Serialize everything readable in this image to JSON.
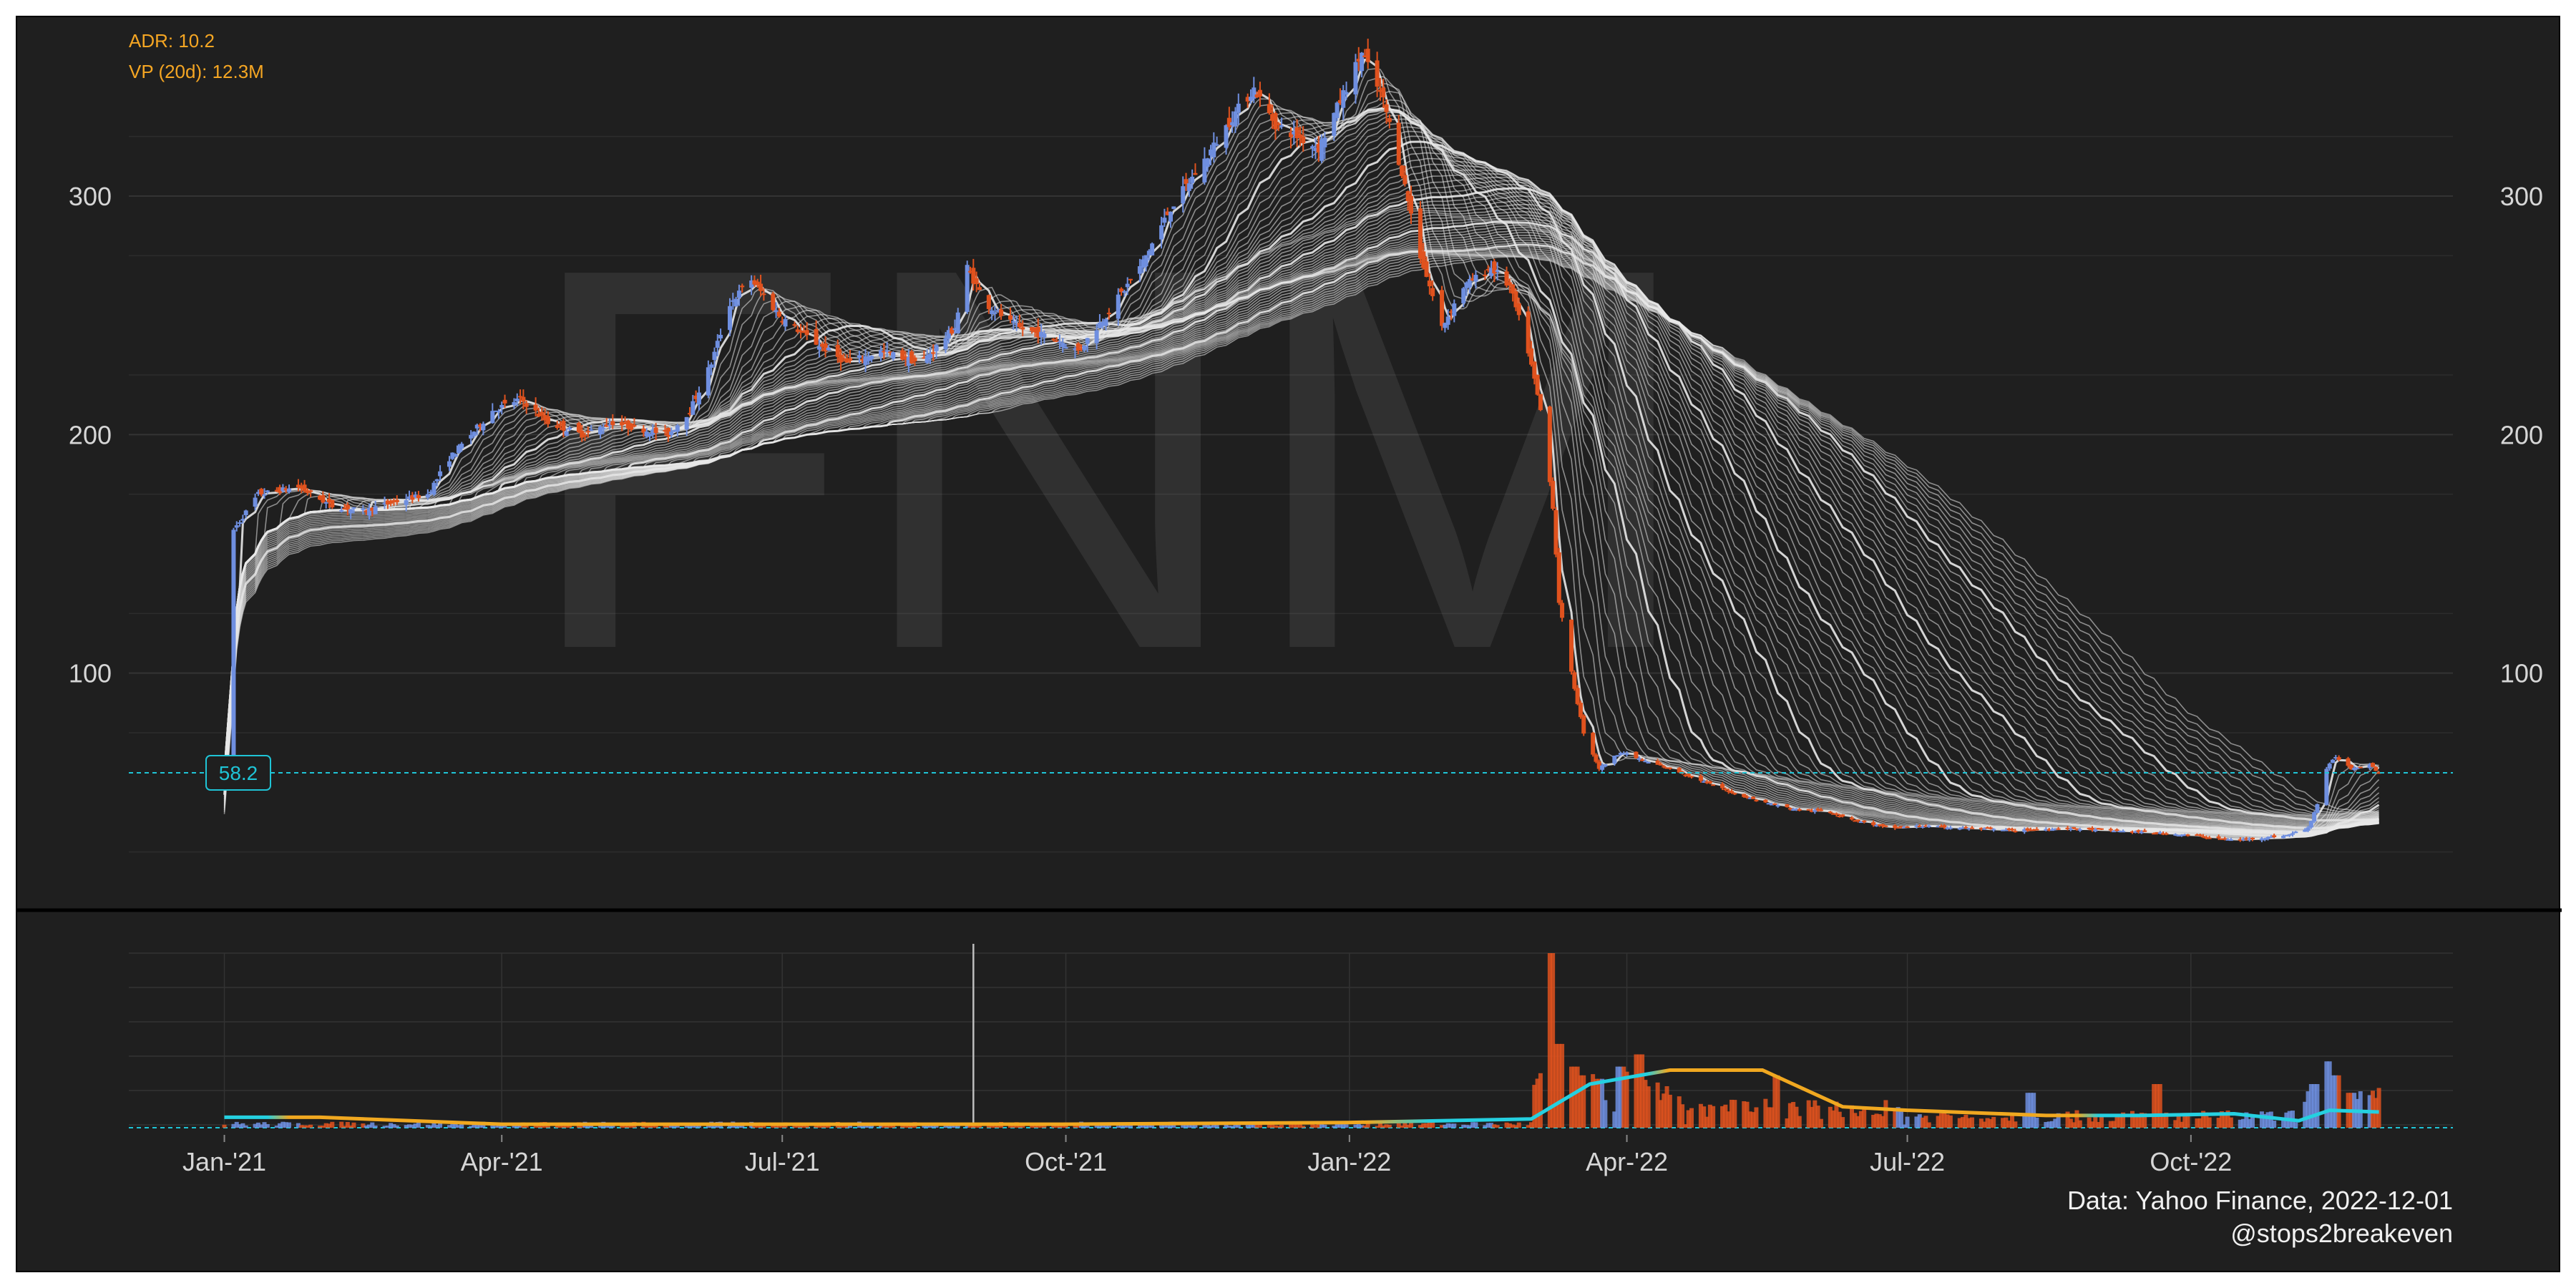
{
  "chart_data": [
    {
      "type": "candlestick",
      "watermark": "FNM",
      "info": {
        "adr": "ADR: 10.2",
        "vp": "VP (20d): 12.3M"
      },
      "last_price_label": "58.2",
      "last_price": 58.2,
      "ylim": [
        0,
        375
      ],
      "yticks": [
        100,
        200,
        300
      ],
      "xticks": [
        {
          "date": "2021-01-01",
          "label": "Jan-'21"
        },
        {
          "date": "2021-04-01",
          "label": "Apr-'21"
        },
        {
          "date": "2021-07-01",
          "label": "Jul-'21"
        },
        {
          "date": "2021-10-01",
          "label": "Oct-'21"
        },
        {
          "date": "2022-01-01",
          "label": "Jan-'22"
        },
        {
          "date": "2022-04-01",
          "label": "Apr-'22"
        },
        {
          "date": "2022-07-01",
          "label": "Jul-'22"
        },
        {
          "date": "2022-10-01",
          "label": "Oct-'22"
        }
      ],
      "xlim": [
        "2020-12-01",
        "2022-12-25"
      ],
      "date_range": [
        "2021-01-01",
        "2022-12-01"
      ],
      "up_color": "#6f8fe0",
      "down_color": "#e0521e",
      "ma_ribbon_color": "#e8e8e8",
      "ma_ribbon_count": 60,
      "price_path": [
        [
          "2021-01-04",
          160
        ],
        [
          "2021-01-12",
          175
        ],
        [
          "2021-01-25",
          178
        ],
        [
          "2021-02-05",
          170
        ],
        [
          "2021-02-15",
          168
        ],
        [
          "2021-02-26",
          172
        ],
        [
          "2021-03-08",
          175
        ],
        [
          "2021-03-15",
          190
        ],
        [
          "2021-03-22",
          200
        ],
        [
          "2021-03-29",
          210
        ],
        [
          "2021-04-07",
          215
        ],
        [
          "2021-04-16",
          205
        ],
        [
          "2021-04-27",
          200
        ],
        [
          "2021-05-07",
          205
        ],
        [
          "2021-05-17",
          202
        ],
        [
          "2021-05-25",
          200
        ],
        [
          "2021-06-01",
          210
        ],
        [
          "2021-06-08",
          230
        ],
        [
          "2021-06-14",
          255
        ],
        [
          "2021-06-21",
          265
        ],
        [
          "2021-06-30",
          250
        ],
        [
          "2021-07-10",
          240
        ],
        [
          "2021-07-22",
          230
        ],
        [
          "2021-08-02",
          235
        ],
        [
          "2021-08-15",
          230
        ],
        [
          "2021-08-26",
          245
        ],
        [
          "2021-08-30",
          270
        ],
        [
          "2021-09-05",
          255
        ],
        [
          "2021-09-15",
          245
        ],
        [
          "2021-09-28",
          240
        ],
        [
          "2021-10-05",
          235
        ],
        [
          "2021-10-14",
          250
        ],
        [
          "2021-10-25",
          270
        ],
        [
          "2021-11-04",
          295
        ],
        [
          "2021-11-15",
          315
        ],
        [
          "2021-11-25",
          335
        ],
        [
          "2021-12-01",
          345
        ],
        [
          "2021-12-08",
          330
        ],
        [
          "2021-12-15",
          325
        ],
        [
          "2021-12-22",
          320
        ],
        [
          "2021-12-29",
          340
        ],
        [
          "2022-01-05",
          360
        ],
        [
          "2022-01-12",
          340
        ],
        [
          "2022-01-18",
          310
        ],
        [
          "2022-01-24",
          275
        ],
        [
          "2022-01-31",
          245
        ],
        [
          "2022-02-07",
          262
        ],
        [
          "2022-02-16",
          270
        ],
        [
          "2022-02-22",
          262
        ],
        [
          "2022-02-28",
          235
        ],
        [
          "2022-03-04",
          210
        ],
        [
          "2022-03-08",
          170
        ],
        [
          "2022-03-10",
          130
        ],
        [
          "2022-03-14",
          100
        ],
        [
          "2022-03-18",
          75
        ],
        [
          "2022-03-23",
          60
        ],
        [
          "2022-03-30",
          67
        ],
        [
          "2022-04-07",
          63
        ],
        [
          "2022-04-15",
          60
        ],
        [
          "2022-04-25",
          55
        ],
        [
          "2022-05-05",
          50
        ],
        [
          "2022-05-15",
          46
        ],
        [
          "2022-05-25",
          43
        ],
        [
          "2022-06-05",
          42
        ],
        [
          "2022-06-15",
          38
        ],
        [
          "2022-06-25",
          35
        ],
        [
          "2022-07-05",
          36
        ],
        [
          "2022-07-20",
          35
        ],
        [
          "2022-08-05",
          34
        ],
        [
          "2022-08-20",
          35
        ],
        [
          "2022-09-05",
          34
        ],
        [
          "2022-09-20",
          33
        ],
        [
          "2022-10-01",
          32
        ],
        [
          "2022-10-15",
          30
        ],
        [
          "2022-10-25",
          31
        ],
        [
          "2022-11-01",
          32
        ],
        [
          "2022-11-08",
          35
        ],
        [
          "2022-11-11",
          45
        ],
        [
          "2022-11-14",
          60
        ],
        [
          "2022-11-17",
          65
        ],
        [
          "2022-11-22",
          60
        ],
        [
          "2022-11-28",
          62
        ],
        [
          "2022-12-01",
          58
        ]
      ],
      "volume": {
        "threshold_color": "#1fc4d6",
        "avg_color_above": "#25d0e0",
        "avg_color_below": "#f0a820",
        "avg_path": [
          [
            "2021-01-01",
            0.06
          ],
          [
            "2021-02-01",
            0.06
          ],
          [
            "2021-04-01",
            0.02
          ],
          [
            "2021-07-01",
            0.02
          ],
          [
            "2021-10-01",
            0.02
          ],
          [
            "2022-01-01",
            0.03
          ],
          [
            "2022-03-01",
            0.05
          ],
          [
            "2022-03-20",
            0.25
          ],
          [
            "2022-04-15",
            0.33
          ],
          [
            "2022-05-15",
            0.33
          ],
          [
            "2022-06-10",
            0.12
          ],
          [
            "2022-07-01",
            0.1
          ],
          [
            "2022-08-15",
            0.07
          ],
          [
            "2022-09-15",
            0.07
          ],
          [
            "2022-10-15",
            0.08
          ],
          [
            "2022-11-05",
            0.04
          ],
          [
            "2022-11-15",
            0.1
          ],
          [
            "2022-12-01",
            0.09
          ]
        ],
        "spikes": [
          [
            "2022-03-08",
            1.0
          ],
          [
            "2022-03-10",
            0.48
          ],
          [
            "2022-03-15",
            0.35
          ],
          [
            "2022-03-18",
            0.3
          ],
          [
            "2022-03-23",
            0.28
          ],
          [
            "2022-03-30",
            0.35
          ],
          [
            "2022-04-05",
            0.42
          ],
          [
            "2022-05-20",
            0.3
          ],
          [
            "2022-08-10",
            0.2
          ],
          [
            "2022-09-20",
            0.25
          ],
          [
            "2022-11-10",
            0.25
          ],
          [
            "2022-11-14",
            0.38
          ],
          [
            "2022-11-17",
            0.3
          ],
          [
            "2022-11-22",
            0.2
          ]
        ]
      }
    }
  ],
  "credit": {
    "source": "Data: Yahoo Finance, 2022-12-01",
    "handle": "@stops2breakeven"
  }
}
